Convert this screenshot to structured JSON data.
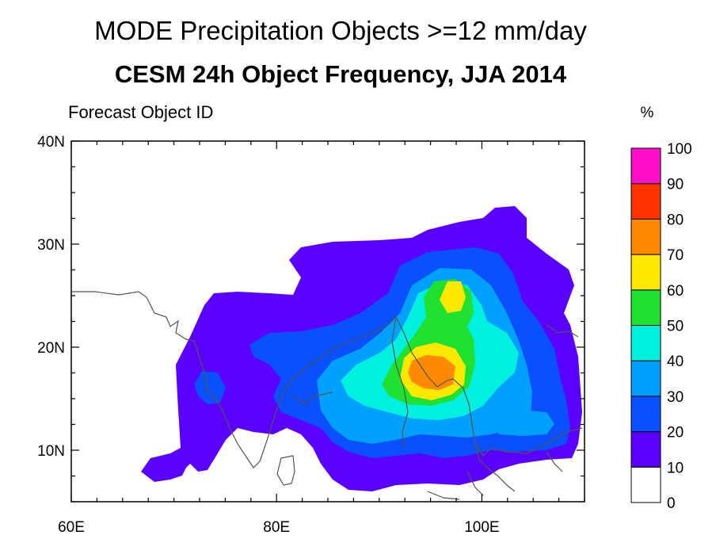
{
  "header": {
    "title": "MODE Precipitation Objects >=12 mm/day",
    "subtitle": "CESM 24h Object Frequency, JJA 2014",
    "panel_label": "Forecast Object ID"
  },
  "map": {
    "lon_range": [
      60,
      110
    ],
    "lat_range": [
      5,
      40
    ],
    "x_ticks": [
      {
        "value": 60,
        "label": "60E"
      },
      {
        "value": 80,
        "label": "80E"
      },
      {
        "value": 100,
        "label": "100E"
      }
    ],
    "y_ticks": [
      {
        "value": 10,
        "label": "10N"
      },
      {
        "value": 20,
        "label": "20N"
      },
      {
        "value": 30,
        "label": "30N"
      },
      {
        "value": 40,
        "label": "40N"
      }
    ]
  },
  "colorbar": {
    "unit": "%",
    "levels": [
      "0",
      "10",
      "20",
      "30",
      "40",
      "50",
      "60",
      "70",
      "80",
      "90",
      "100"
    ],
    "colors": [
      "#ffffff",
      "#5a00ff",
      "#0a50ff",
      "#00a0ff",
      "#00f0e0",
      "#20e030",
      "#ffe800",
      "#ff8a00",
      "#ff3200",
      "#ff10c8"
    ]
  }
}
